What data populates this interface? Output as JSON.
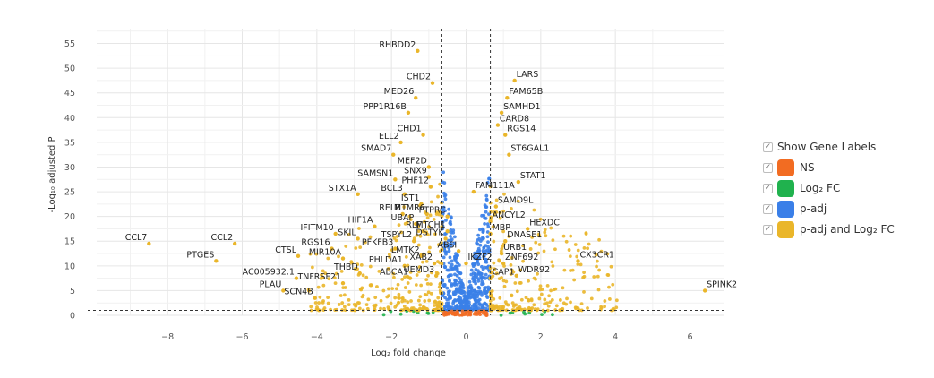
{
  "chart_data": {
    "type": "scatter",
    "xlabel": "Log₂ fold change",
    "ylabel": "-Log₁₀ adjusted P",
    "xlim": [
      -9.9,
      6.9
    ],
    "ylim": [
      0,
      58
    ],
    "xticks": [
      -8,
      -6,
      -4,
      -2,
      0,
      2,
      4,
      6
    ],
    "yticks": [
      0,
      5,
      10,
      15,
      20,
      25,
      30,
      35,
      40,
      45,
      50,
      55
    ],
    "grid": true,
    "legend_position": "right",
    "thresholds": {
      "log2fc": [
        -0.65,
        0.65
      ],
      "neg_log10_padj": 1.0
    },
    "colors": {
      "NS": "#f26c22",
      "log2fc": "#20b24e",
      "padj": "#3a7fe8",
      "both": "#eab62a"
    },
    "legend": {
      "show_labels": "Show Gene Labels",
      "entries": [
        "NS",
        "Log₂ FC",
        "p-adj",
        "p-adj and Log₂ FC"
      ]
    },
    "labeled_genes": [
      {
        "gene": "RHBDD2",
        "x": -1.3,
        "y": 53.5
      },
      {
        "gene": "CHD2",
        "x": -0.9,
        "y": 47
      },
      {
        "gene": "LARS",
        "x": 1.3,
        "y": 47.5
      },
      {
        "gene": "MED26",
        "x": -1.35,
        "y": 44
      },
      {
        "gene": "FAM65B",
        "x": 1.1,
        "y": 44
      },
      {
        "gene": "PPP1R16B",
        "x": -1.55,
        "y": 41
      },
      {
        "gene": "SAMHD1",
        "x": 0.95,
        "y": 41
      },
      {
        "gene": "CARD8",
        "x": 0.85,
        "y": 38.5
      },
      {
        "gene": "CHD1",
        "x": -1.15,
        "y": 36.5
      },
      {
        "gene": "RGS14",
        "x": 1.05,
        "y": 36.5
      },
      {
        "gene": "ELL2",
        "x": -1.75,
        "y": 35
      },
      {
        "gene": "ST6GAL1",
        "x": 1.15,
        "y": 32.5
      },
      {
        "gene": "SMAD7",
        "x": -1.95,
        "y": 32.5
      },
      {
        "gene": "MEF2D",
        "x": -1.0,
        "y": 30
      },
      {
        "gene": "SNX9",
        "x": -1.0,
        "y": 28
      },
      {
        "gene": "SAMSN1",
        "x": -1.9,
        "y": 27.5
      },
      {
        "gene": "STAT1",
        "x": 1.4,
        "y": 27
      },
      {
        "gene": "PHF12",
        "x": -0.95,
        "y": 26
      },
      {
        "gene": "STX1A",
        "x": -2.9,
        "y": 24.5
      },
      {
        "gene": "BCL3",
        "x": -1.65,
        "y": 24.5
      },
      {
        "gene": "FAM111A",
        "x": 0.2,
        "y": 25
      },
      {
        "gene": "IST1",
        "x": -1.2,
        "y": 22.5
      },
      {
        "gene": "SAMD9L",
        "x": 0.8,
        "y": 22
      },
      {
        "gene": "RELB",
        "x": -1.7,
        "y": 20.5
      },
      {
        "gene": "MTMR6",
        "x": -1.05,
        "y": 20.5
      },
      {
        "gene": "PTPRC",
        "x": -0.5,
        "y": 20
      },
      {
        "gene": "ANCYL2",
        "x": 0.65,
        "y": 19
      },
      {
        "gene": "HIF1A",
        "x": -2.45,
        "y": 18
      },
      {
        "gene": "UBAP",
        "x": -1.35,
        "y": 18.5
      },
      {
        "gene": "HEXDC",
        "x": 1.65,
        "y": 17.5
      },
      {
        "gene": "RLF",
        "x": -1.15,
        "y": 17
      },
      {
        "gene": "MTCH1",
        "x": -0.5,
        "y": 17
      },
      {
        "gene": "MBP",
        "x": 0.65,
        "y": 16.5
      },
      {
        "gene": "IFITM10",
        "x": -3.5,
        "y": 16.5
      },
      {
        "gene": "SKIL",
        "x": -2.9,
        "y": 15.5
      },
      {
        "gene": "DSTYK",
        "x": -0.55,
        "y": 15.5
      },
      {
        "gene": "TSPYL2",
        "x": -1.4,
        "y": 15
      },
      {
        "gene": "DNASE1",
        "x": 1.05,
        "y": 15
      },
      {
        "gene": "CCL7",
        "x": -8.5,
        "y": 14.5
      },
      {
        "gene": "CCL2",
        "x": -6.2,
        "y": 14.5
      },
      {
        "gene": "RGS16",
        "x": -3.6,
        "y": 13.5
      },
      {
        "gene": "PFKFB3",
        "x": -1.9,
        "y": 13.5
      },
      {
        "gene": "ABSI",
        "x": -0.2,
        "y": 13
      },
      {
        "gene": "URB1",
        "x": 0.95,
        "y": 12.5
      },
      {
        "gene": "CTSL",
        "x": -4.5,
        "y": 12
      },
      {
        "gene": "LMTK2",
        "x": -1.2,
        "y": 12
      },
      {
        "gene": "MIR10A",
        "x": -3.3,
        "y": 11.5
      },
      {
        "gene": "PTGES",
        "x": -6.7,
        "y": 11
      },
      {
        "gene": "IKZF2",
        "x": 0.0,
        "y": 10.5
      },
      {
        "gene": "ZNF692",
        "x": 1.0,
        "y": 10.5
      },
      {
        "gene": "CX3CR1",
        "x": 3.0,
        "y": 11
      },
      {
        "gene": "XAB2",
        "x": -0.85,
        "y": 10.5
      },
      {
        "gene": "PHLDA1",
        "x": -1.65,
        "y": 10
      },
      {
        "gene": "THBD",
        "x": -2.85,
        "y": 8.5
      },
      {
        "gene": "WDR92",
        "x": 1.35,
        "y": 8
      },
      {
        "gene": "AC005932.1",
        "x": -4.55,
        "y": 7.5
      },
      {
        "gene": "UEMD3",
        "x": -0.8,
        "y": 8
      },
      {
        "gene": "ABCA1",
        "x": -1.5,
        "y": 7.5
      },
      {
        "gene": "CAP1",
        "x": 0.65,
        "y": 7.5
      },
      {
        "gene": "TNFRSF21",
        "x": -3.3,
        "y": 6.5
      },
      {
        "gene": "SPINK2",
        "x": 6.4,
        "y": 5
      },
      {
        "gene": "PLAU",
        "x": -4.9,
        "y": 5
      },
      {
        "gene": "SCN4B",
        "x": -4.05,
        "y": 3.5
      }
    ]
  }
}
